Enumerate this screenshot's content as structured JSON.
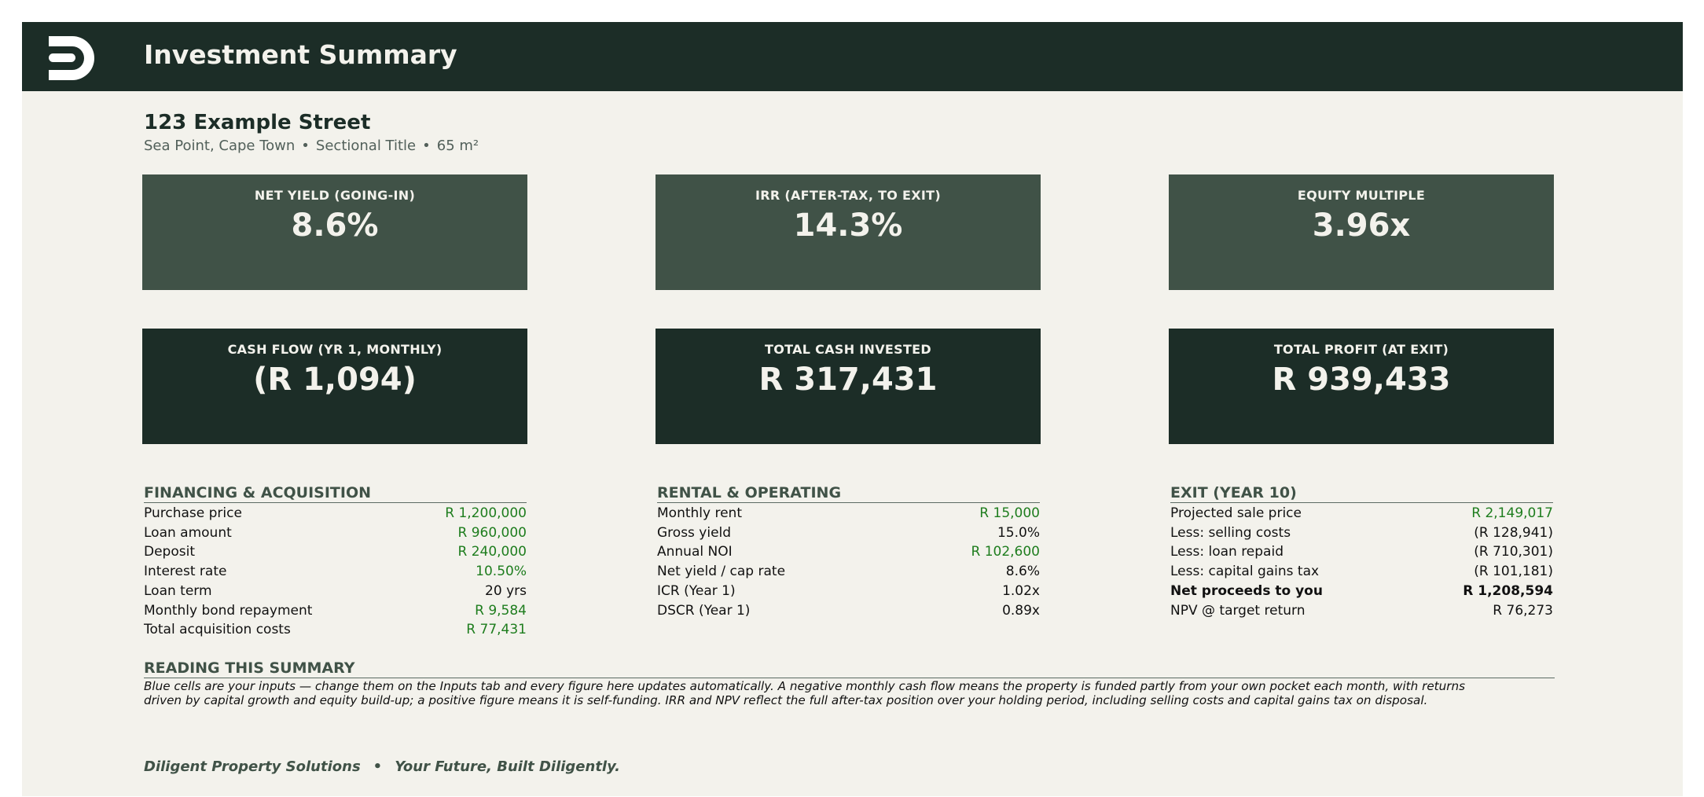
{
  "header": {
    "logo_icon": "diligent-d-logo-icon",
    "title": "Investment Summary"
  },
  "property": {
    "name": "123 Example Street",
    "location": "Sea Point, Cape Town",
    "title_type": "Sectional Title",
    "size": "65 m²",
    "separator": "•"
  },
  "kpis": [
    {
      "label": "NET YIELD (GOING-IN)",
      "value": "8.6%"
    },
    {
      "label": "IRR (AFTER-TAX, TO EXIT)",
      "value": "14.3%"
    },
    {
      "label": "EQUITY MULTIPLE",
      "value": "3.96x"
    },
    {
      "label": "CASH FLOW (YR 1, MONTHLY)",
      "value": "(R 1,094)"
    },
    {
      "label": "TOTAL CASH INVESTED",
      "value": "R 317,431"
    },
    {
      "label": "TOTAL PROFIT (AT EXIT)",
      "value": "R 939,433"
    }
  ],
  "financing": {
    "title": "FINANCING & ACQUISITION",
    "rows": [
      {
        "label": "Purchase price",
        "value": "R 1,200,000"
      },
      {
        "label": "Loan amount",
        "value": "R 960,000"
      },
      {
        "label": "Deposit",
        "value": "R 240,000"
      },
      {
        "label": "Interest rate",
        "value": "10.50%"
      },
      {
        "label": "Loan term",
        "value": "20 yrs"
      },
      {
        "label": "Monthly bond repayment",
        "value": "R 9,584"
      },
      {
        "label": "Total acquisition costs",
        "value": "R 77,431"
      }
    ]
  },
  "rental": {
    "title": "RENTAL & OPERATING",
    "rows": [
      {
        "label": "Monthly rent",
        "value": "R 15,000"
      },
      {
        "label": "Gross yield",
        "value": "15.0%"
      },
      {
        "label": "Annual NOI",
        "value": "R 102,600"
      },
      {
        "label": "Net yield / cap rate",
        "value": "8.6%"
      },
      {
        "label": "ICR (Year 1)",
        "value": "1.02x"
      },
      {
        "label": "DSCR (Year 1)",
        "value": "0.89x"
      }
    ]
  },
  "exit": {
    "title": "EXIT (YEAR 10)",
    "rows": [
      {
        "label": "Projected sale price",
        "value": "R 2,149,017"
      },
      {
        "label": "Less: selling costs",
        "value": "(R 128,941)"
      },
      {
        "label": "Less: loan repaid",
        "value": "(R 710,301)"
      },
      {
        "label": "Less: capital gains tax",
        "value": "(R 101,181)"
      },
      {
        "label": "Net proceeds to you",
        "value": "R 1,208,594"
      },
      {
        "label": "NPV @ target return",
        "value": "R 76,273"
      }
    ]
  },
  "reading": {
    "title": "READING THIS SUMMARY",
    "line1": "Blue cells are your inputs — change them on the Inputs tab and every figure here updates automatically. A negative monthly cash flow means the property is funded partly from your own pocket each month, with returns",
    "line2": "driven by capital growth and equity build-up; a positive figure means it is self-funding. IRR and NPV reflect the full after-tax position over your holding period, including selling costs and capital gains tax on disposal."
  },
  "footer": {
    "company": "Diligent Property Solutions",
    "separator": "•",
    "tagline": "Your Future, Built Diligently."
  },
  "colors": {
    "banner": "#1c2d27",
    "kpi_light": "#405247",
    "kpi_dark": "#1c2d27",
    "page": "#f3f2ec",
    "input_value": "#1e7d1e",
    "section_title": "#405247"
  }
}
